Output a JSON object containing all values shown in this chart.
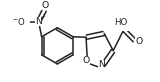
{
  "bg_color": "#ffffff",
  "bond_color": "#222222",
  "atom_color": "#222222",
  "line_width": 1.1,
  "font_size": 6.2,
  "xlim": [
    -0.85,
    0.75
  ],
  "ylim": [
    -0.52,
    0.52
  ]
}
